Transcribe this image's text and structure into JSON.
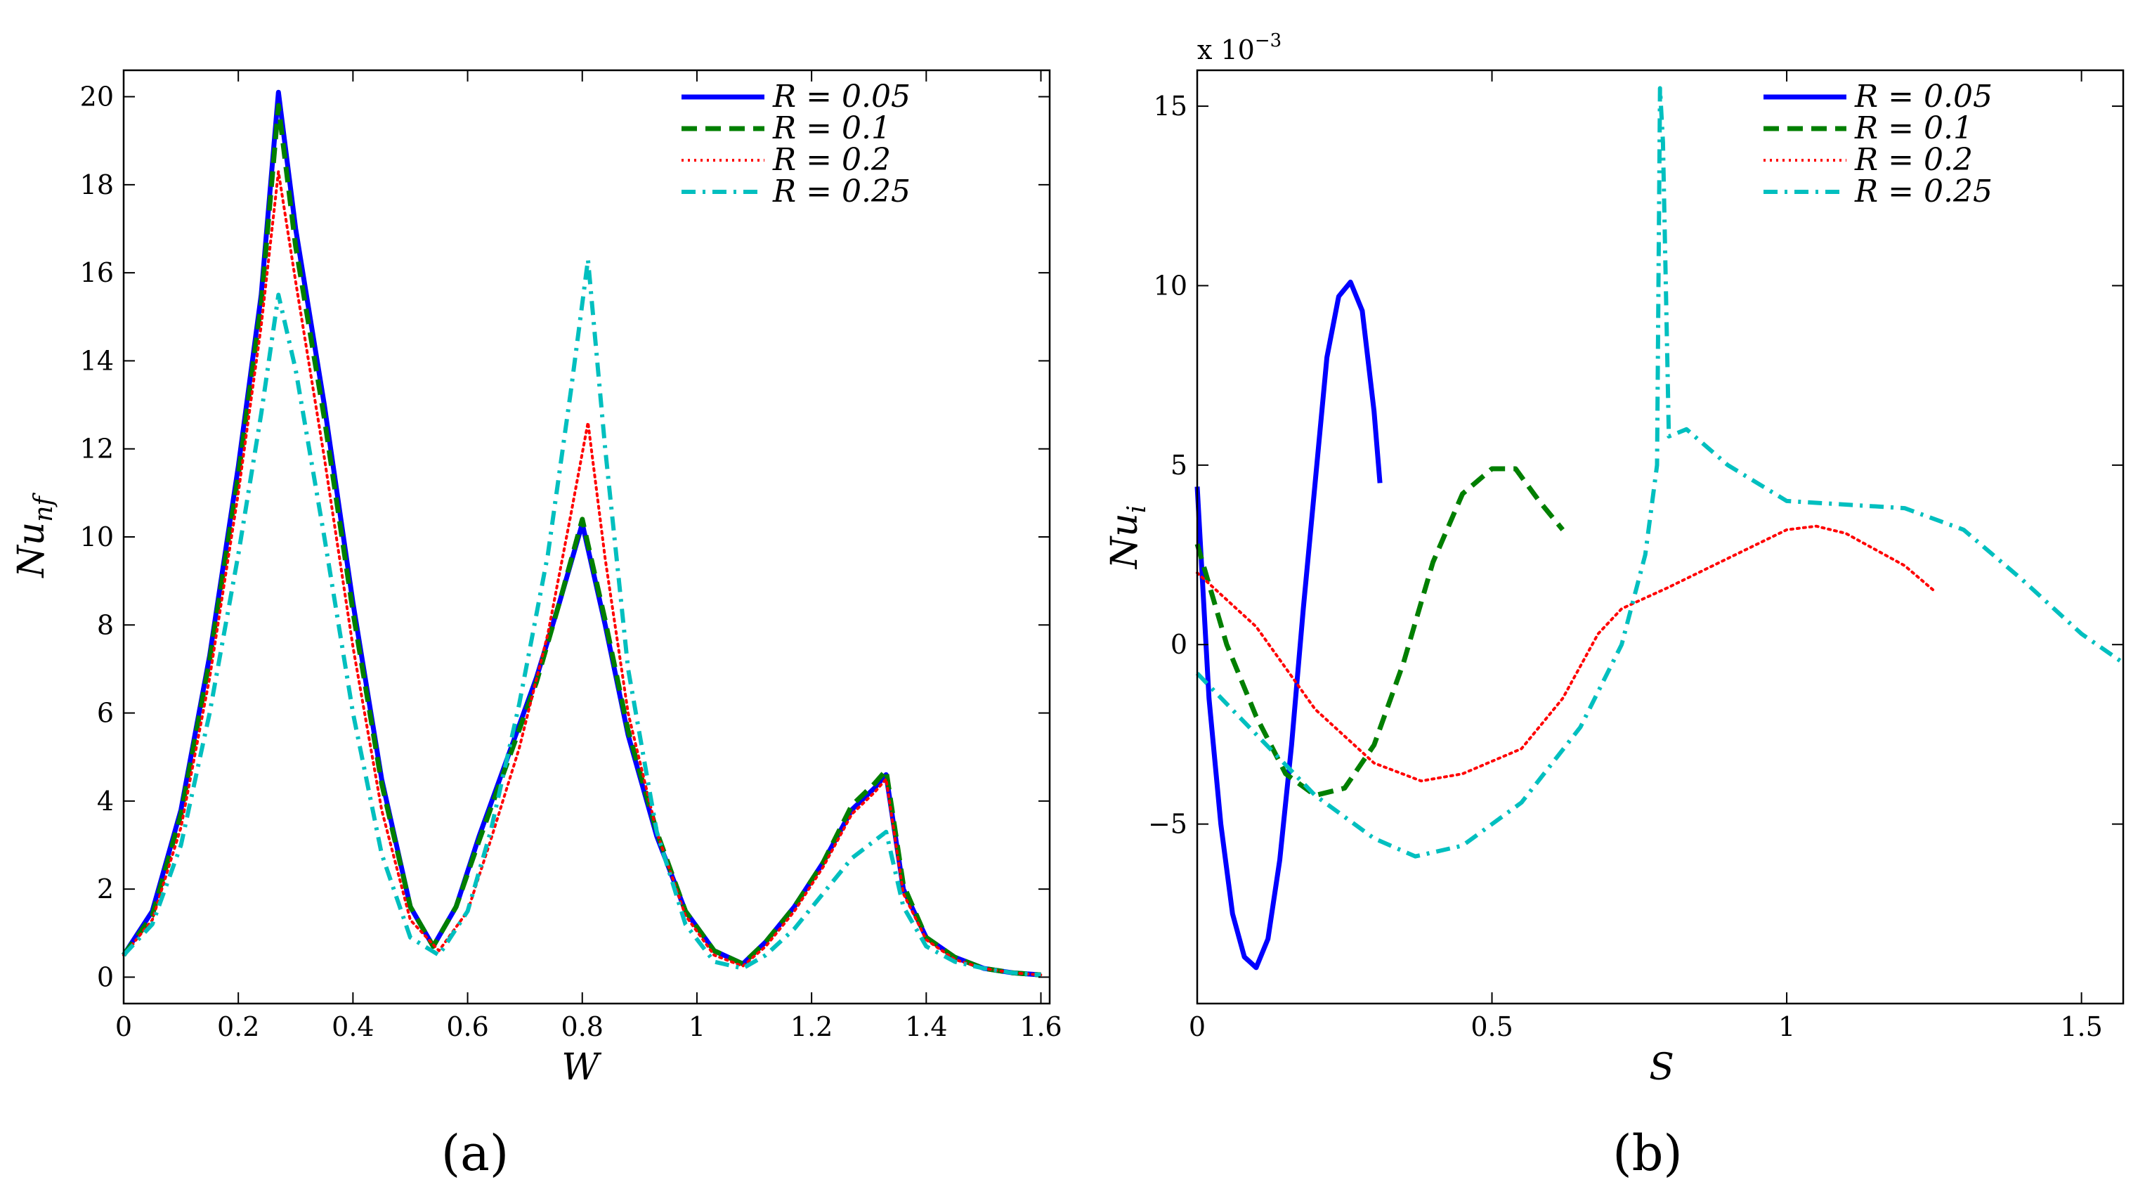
{
  "chart_data": [
    {
      "type": "line",
      "caption": "(a)",
      "xlabel": "W",
      "ylabel": "Nu",
      "ylabel_sub": "nf",
      "xlim": [
        0,
        1.6153
      ],
      "ylim": [
        -0.6,
        20.6
      ],
      "xticks": [
        0,
        0.2,
        0.4,
        0.6,
        0.8,
        1,
        1.2,
        1.4,
        1.6
      ],
      "xtick_labels": [
        "0",
        "0.2",
        "0.4",
        "0.6",
        "0.8",
        "1",
        "1.2",
        "1.4",
        "1.6"
      ],
      "yticks": [
        0,
        2,
        4,
        6,
        8,
        10,
        12,
        14,
        16,
        18,
        20
      ],
      "ytick_labels": [
        "0",
        "2",
        "4",
        "6",
        "8",
        "10",
        "12",
        "14",
        "16",
        "18",
        "20"
      ],
      "legend_position": "top-right",
      "series": [
        {
          "name": "R = 0.05",
          "color": "#0000ff",
          "style": "solid",
          "x": [
            0,
            0.05,
            0.1,
            0.15,
            0.2,
            0.24,
            0.27,
            0.3,
            0.35,
            0.4,
            0.45,
            0.5,
            0.54,
            0.58,
            0.62,
            0.67,
            0.72,
            0.76,
            0.8,
            0.84,
            0.88,
            0.93,
            0.98,
            1.03,
            1.08,
            1.12,
            1.17,
            1.22,
            1.27,
            1.31,
            1.33,
            1.36,
            1.4,
            1.45,
            1.5,
            1.55,
            1.6
          ],
          "y": [
            0.5,
            1.5,
            3.8,
            7.3,
            11.6,
            15.5,
            20.1,
            17.0,
            13.0,
            8.5,
            4.5,
            1.6,
            0.7,
            1.6,
            3.2,
            5.0,
            6.8,
            8.5,
            10.3,
            8.0,
            5.5,
            3.2,
            1.5,
            0.6,
            0.3,
            0.8,
            1.6,
            2.6,
            3.8,
            4.3,
            4.6,
            2.0,
            0.9,
            0.45,
            0.2,
            0.1,
            0.05
          ]
        },
        {
          "name": "R = 0.1",
          "color": "#007f00",
          "style": "dashed",
          "x": [
            0,
            0.05,
            0.1,
            0.15,
            0.2,
            0.24,
            0.27,
            0.3,
            0.35,
            0.4,
            0.45,
            0.5,
            0.54,
            0.58,
            0.62,
            0.67,
            0.72,
            0.76,
            0.8,
            0.84,
            0.88,
            0.93,
            0.98,
            1.03,
            1.08,
            1.12,
            1.17,
            1.22,
            1.27,
            1.31,
            1.33,
            1.36,
            1.4,
            1.45,
            1.5,
            1.55,
            1.6
          ],
          "y": [
            0.5,
            1.4,
            3.7,
            7.2,
            11.4,
            15.3,
            19.8,
            16.6,
            12.7,
            8.3,
            4.4,
            1.6,
            0.7,
            1.6,
            3.1,
            4.9,
            6.7,
            8.5,
            10.4,
            8.1,
            5.6,
            3.3,
            1.5,
            0.6,
            0.3,
            0.8,
            1.6,
            2.6,
            3.9,
            4.4,
            4.7,
            2.1,
            0.9,
            0.45,
            0.2,
            0.1,
            0.05
          ]
        },
        {
          "name": "R = 0.2",
          "color": "#ff0000",
          "style": "dotted",
          "x": [
            0,
            0.05,
            0.1,
            0.15,
            0.2,
            0.24,
            0.27,
            0.3,
            0.35,
            0.4,
            0.45,
            0.5,
            0.55,
            0.6,
            0.64,
            0.69,
            0.74,
            0.78,
            0.81,
            0.84,
            0.88,
            0.93,
            0.98,
            1.03,
            1.08,
            1.12,
            1.17,
            1.22,
            1.27,
            1.31,
            1.33,
            1.36,
            1.4,
            1.45,
            1.5,
            1.55,
            1.6
          ],
          "y": [
            0.5,
            1.3,
            3.4,
            6.8,
            11.0,
            14.8,
            18.3,
            15.8,
            11.8,
            7.5,
            3.8,
            1.3,
            0.6,
            1.5,
            3.1,
            5.2,
            7.8,
            10.5,
            12.6,
            9.5,
            6.0,
            3.3,
            1.4,
            0.5,
            0.25,
            0.7,
            1.5,
            2.5,
            3.7,
            4.2,
            4.5,
            1.9,
            0.85,
            0.4,
            0.2,
            0.1,
            0.05
          ]
        },
        {
          "name": "R = 0.25",
          "color": "#00bfbf",
          "style": "dashdot",
          "x": [
            0,
            0.05,
            0.1,
            0.15,
            0.2,
            0.24,
            0.27,
            0.3,
            0.35,
            0.4,
            0.45,
            0.5,
            0.55,
            0.6,
            0.64,
            0.69,
            0.74,
            0.78,
            0.81,
            0.84,
            0.88,
            0.93,
            0.98,
            1.03,
            1.08,
            1.12,
            1.17,
            1.22,
            1.27,
            1.31,
            1.33,
            1.36,
            1.4,
            1.45,
            1.5,
            1.55,
            1.6
          ],
          "y": [
            0.5,
            1.2,
            3.0,
            6.0,
            9.6,
            12.8,
            15.5,
            13.8,
            10.0,
            6.0,
            2.8,
            0.9,
            0.5,
            1.5,
            3.3,
            6.2,
            9.6,
            13.3,
            16.3,
            12.0,
            7.0,
            3.3,
            1.2,
            0.35,
            0.2,
            0.5,
            1.1,
            1.9,
            2.7,
            3.1,
            3.3,
            1.6,
            0.7,
            0.35,
            0.2,
            0.1,
            0.05
          ]
        }
      ]
    },
    {
      "type": "line",
      "caption": "(b)",
      "xlabel": "S",
      "ylabel": "Nu",
      "ylabel_sub": "i",
      "exponent_label": "x 10",
      "exponent_power": "−3",
      "xlim": [
        0,
        1.5708
      ],
      "ylim": [
        -10,
        16
      ],
      "xticks": [
        0,
        0.5,
        1,
        1.5
      ],
      "xtick_labels": [
        "0",
        "0.5",
        "1",
        "1.5"
      ],
      "yticks": [
        -5,
        0,
        5,
        10,
        15
      ],
      "ytick_labels": [
        "−5",
        "0",
        "5",
        "10",
        "15"
      ],
      "legend_position": "top-right",
      "series": [
        {
          "name": "R = 0.05",
          "color": "#0000ff",
          "style": "solid",
          "x": [
            0,
            0.02,
            0.04,
            0.06,
            0.08,
            0.1,
            0.12,
            0.14,
            0.16,
            0.18,
            0.2,
            0.22,
            0.24,
            0.26,
            0.28,
            0.3,
            0.31
          ],
          "y": [
            4.4,
            -1.5,
            -5.0,
            -7.5,
            -8.7,
            -9.0,
            -8.2,
            -6.0,
            -2.8,
            1.0,
            4.5,
            8.0,
            9.7,
            10.1,
            9.3,
            6.5,
            4.5
          ]
        },
        {
          "name": "R = 0.1",
          "color": "#007f00",
          "style": "dashed",
          "x": [
            0,
            0.05,
            0.1,
            0.15,
            0.2,
            0.25,
            0.3,
            0.35,
            0.4,
            0.45,
            0.5,
            0.54,
            0.58,
            0.62
          ],
          "y": [
            2.8,
            0.0,
            -2.0,
            -3.6,
            -4.2,
            -4.0,
            -2.8,
            -0.5,
            2.3,
            4.2,
            4.9,
            4.9,
            4.0,
            3.2
          ]
        },
        {
          "name": "R = 0.2",
          "color": "#ff0000",
          "style": "dotted",
          "x": [
            0,
            0.1,
            0.2,
            0.3,
            0.38,
            0.45,
            0.55,
            0.62,
            0.68,
            0.72,
            0.8,
            0.9,
            1.0,
            1.05,
            1.1,
            1.2,
            1.25
          ],
          "y": [
            2.0,
            0.5,
            -1.8,
            -3.3,
            -3.8,
            -3.6,
            -2.9,
            -1.5,
            0.3,
            1.0,
            1.6,
            2.4,
            3.2,
            3.3,
            3.1,
            2.2,
            1.5
          ]
        },
        {
          "name": "R = 0.25",
          "color": "#00bfbf",
          "style": "dashdot",
          "x": [
            0,
            0.1,
            0.2,
            0.3,
            0.37,
            0.45,
            0.55,
            0.65,
            0.72,
            0.76,
            0.78,
            0.785,
            0.79,
            0.8,
            0.83,
            0.9,
            1.0,
            1.1,
            1.2,
            1.3,
            1.4,
            1.5,
            1.57
          ],
          "y": [
            -0.8,
            -2.5,
            -4.2,
            -5.4,
            -5.9,
            -5.6,
            -4.4,
            -2.3,
            0.0,
            2.5,
            5.0,
            15.5,
            14.0,
            5.8,
            6.0,
            5.0,
            4.0,
            3.9,
            3.8,
            3.2,
            1.8,
            0.3,
            -0.5
          ]
        }
      ]
    }
  ]
}
